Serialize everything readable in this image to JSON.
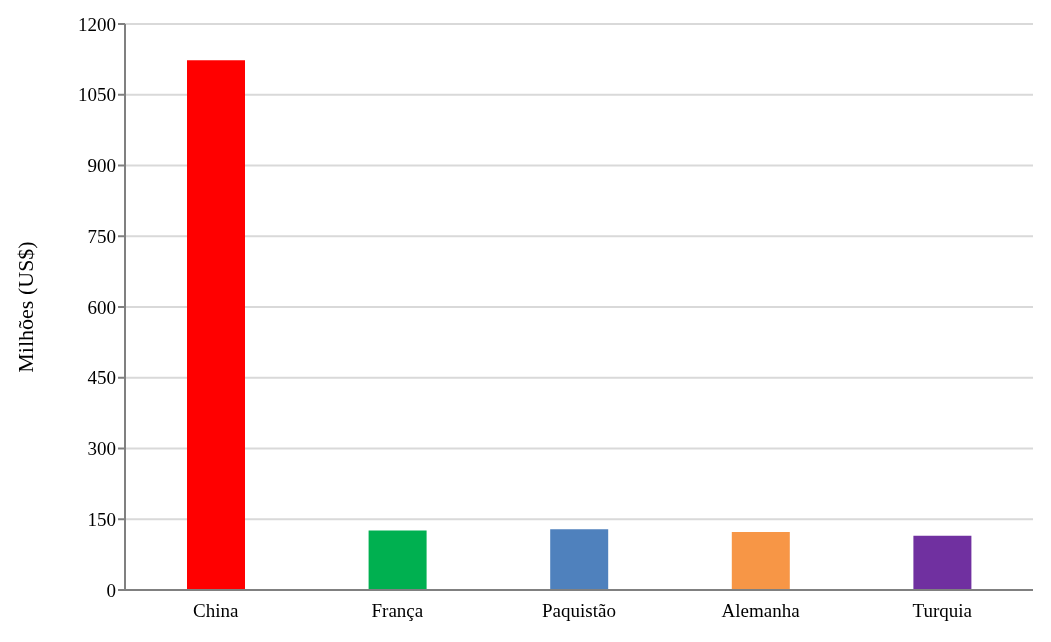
{
  "chart_data": {
    "type": "bar",
    "ylabel": "Milhões (US$)",
    "categories": [
      "China",
      "França",
      "Paquistão",
      "Alemanha",
      "Turquia"
    ],
    "values": [
      1123,
      126,
      129,
      123,
      115
    ],
    "colors": [
      "#ff0000",
      "#00b050",
      "#4f81bd",
      "#f79646",
      "#7030a0"
    ],
    "ylim": [
      0,
      1200
    ],
    "yticks": [
      0,
      150,
      300,
      450,
      600,
      750,
      900,
      1050,
      1200
    ],
    "grid": "y"
  }
}
